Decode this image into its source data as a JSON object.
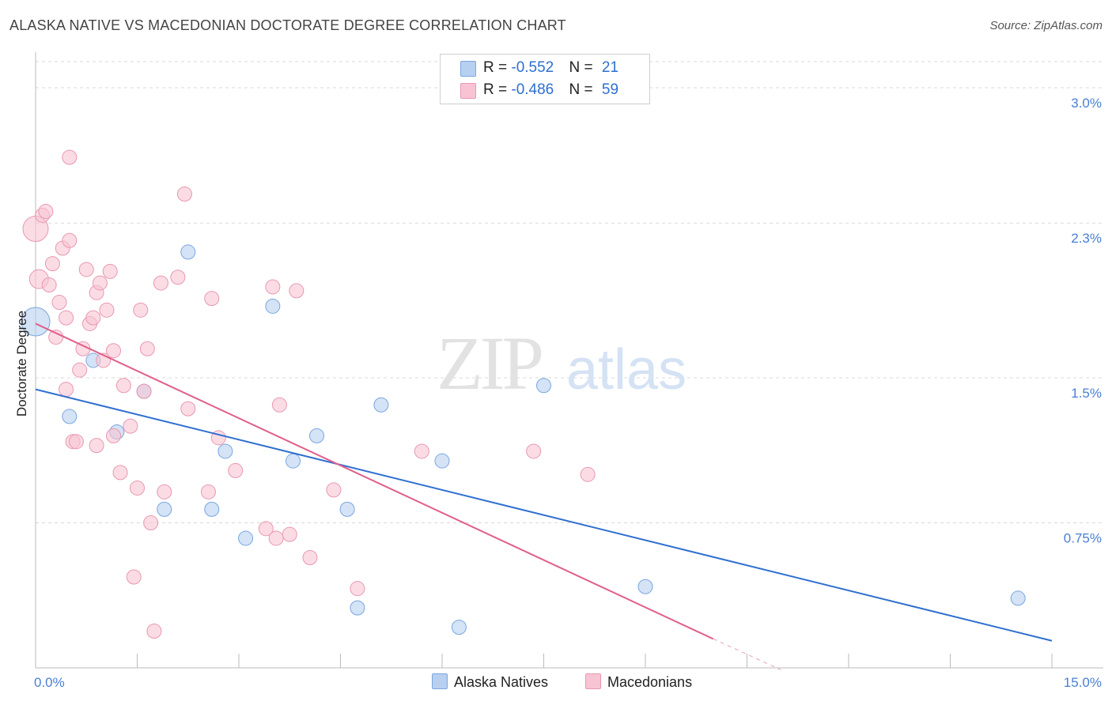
{
  "title": "ALASKA NATIVE VS MACEDONIAN DOCTORATE DEGREE CORRELATION CHART",
  "source": "Source: ZipAtlas.com",
  "watermark": {
    "zip": "ZIP",
    "atlas": "atlas"
  },
  "legend": {
    "series1": {
      "r_label": "R = ",
      "r_value": "-0.552",
      "n_label": "N = ",
      "n_value": "21"
    },
    "series2": {
      "r_label": "R = ",
      "r_value": "-0.486",
      "n_label": "N = ",
      "n_value": "59"
    }
  },
  "bottom_legend": {
    "series1": "Alaska Natives",
    "series2": "Macedonians"
  },
  "colors": {
    "blue_fill": "#b8d0f0",
    "blue_stroke": "#7aa6e0",
    "blue_line": "#2f6fd0",
    "pink_fill": "#f8c4d4",
    "pink_stroke": "#e898b0",
    "pink_line": "#e0608a",
    "grid": "#d8d8d8",
    "tick_text": "#4a7fd4"
  },
  "chart_data": {
    "type": "scatter",
    "title": "ALASKA NATIVE VS MACEDONIAN DOCTORATE DEGREE CORRELATION CHART",
    "xlabel": "",
    "ylabel": "Doctorate Degree",
    "xlim": [
      0,
      15
    ],
    "ylim": [
      0,
      3.2
    ],
    "x_tick_labels": [
      {
        "v": 0,
        "label": "0.0%"
      },
      {
        "v": 15,
        "label": "15.0%"
      }
    ],
    "y_tick_labels": [
      {
        "v": 0.75,
        "label": "0.75%"
      },
      {
        "v": 1.5,
        "label": "1.5%"
      },
      {
        "v": 2.3,
        "label": "2.3%"
      },
      {
        "v": 3.0,
        "label": "3.0%"
      }
    ],
    "grid": true,
    "legend_position": "top-center",
    "series": [
      {
        "name": "Alaska Natives",
        "color": "#b8d0f0",
        "points": [
          [
            0.0,
            1.79,
            18
          ],
          [
            0.5,
            1.3,
            9
          ],
          [
            0.85,
            1.59,
            9
          ],
          [
            1.2,
            1.22,
            9
          ],
          [
            1.6,
            1.43,
            9
          ],
          [
            1.9,
            0.82,
            9
          ],
          [
            2.25,
            2.15,
            9
          ],
          [
            2.6,
            0.82,
            9
          ],
          [
            2.8,
            1.12,
            9
          ],
          [
            3.1,
            0.67,
            9
          ],
          [
            3.5,
            1.87,
            9
          ],
          [
            3.8,
            1.07,
            9
          ],
          [
            4.15,
            1.2,
            9
          ],
          [
            4.6,
            0.82,
            9
          ],
          [
            4.75,
            0.31,
            9
          ],
          [
            5.1,
            1.36,
            9
          ],
          [
            6.0,
            1.07,
            9
          ],
          [
            6.25,
            0.21,
            9
          ],
          [
            7.5,
            1.46,
            9
          ],
          [
            9.0,
            0.42,
            9
          ],
          [
            14.5,
            0.36,
            9
          ]
        ],
        "trend": {
          "x": [
            0,
            15
          ],
          "y": [
            1.44,
            0.14
          ]
        }
      },
      {
        "name": "Macedonians",
        "color": "#f8c4d4",
        "points": [
          [
            0.0,
            2.27,
            16
          ],
          [
            0.05,
            2.01,
            12
          ],
          [
            0.1,
            2.34,
            9
          ],
          [
            0.15,
            2.36,
            9
          ],
          [
            0.2,
            1.98,
            9
          ],
          [
            0.25,
            2.09,
            9
          ],
          [
            0.3,
            1.71,
            9
          ],
          [
            0.35,
            1.89,
            9
          ],
          [
            0.4,
            2.17,
            9
          ],
          [
            0.45,
            1.81,
            9
          ],
          [
            0.45,
            1.44,
            9
          ],
          [
            0.5,
            2.21,
            9
          ],
          [
            0.5,
            2.64,
            9
          ],
          [
            0.55,
            1.17,
            9
          ],
          [
            0.6,
            1.17,
            9
          ],
          [
            0.65,
            1.54,
            9
          ],
          [
            0.7,
            1.65,
            9
          ],
          [
            0.75,
            2.06,
            9
          ],
          [
            0.8,
            1.78,
            9
          ],
          [
            0.85,
            1.81,
            9
          ],
          [
            0.9,
            1.15,
            9
          ],
          [
            0.9,
            1.94,
            9
          ],
          [
            0.95,
            1.99,
            9
          ],
          [
            1.0,
            1.59,
            9
          ],
          [
            1.05,
            1.85,
            9
          ],
          [
            1.1,
            2.05,
            9
          ],
          [
            1.15,
            1.64,
            9
          ],
          [
            1.15,
            1.2,
            9
          ],
          [
            1.25,
            1.01,
            9
          ],
          [
            1.3,
            1.46,
            9
          ],
          [
            1.4,
            1.25,
            9
          ],
          [
            1.45,
            0.47,
            9
          ],
          [
            1.5,
            0.93,
            9
          ],
          [
            1.55,
            1.85,
            9
          ],
          [
            1.6,
            1.43,
            9
          ],
          [
            1.65,
            1.65,
            9
          ],
          [
            1.7,
            0.75,
            9
          ],
          [
            1.75,
            0.19,
            9
          ],
          [
            1.85,
            1.99,
            9
          ],
          [
            1.9,
            0.91,
            9
          ],
          [
            2.1,
            2.02,
            9
          ],
          [
            2.2,
            2.45,
            9
          ],
          [
            2.25,
            1.34,
            9
          ],
          [
            2.55,
            0.91,
            9
          ],
          [
            2.6,
            1.91,
            9
          ],
          [
            2.7,
            1.19,
            9
          ],
          [
            2.95,
            1.02,
            9
          ],
          [
            3.4,
            0.72,
            9
          ],
          [
            3.5,
            1.97,
            9
          ],
          [
            3.55,
            0.67,
            9
          ],
          [
            3.6,
            1.36,
            9
          ],
          [
            3.75,
            0.69,
            9
          ],
          [
            3.85,
            1.95,
            9
          ],
          [
            4.05,
            0.57,
            9
          ],
          [
            4.4,
            0.92,
            9
          ],
          [
            4.75,
            0.41,
            9
          ],
          [
            5.7,
            1.12,
            9
          ],
          [
            7.35,
            1.12,
            9
          ],
          [
            8.15,
            1.0,
            9
          ]
        ],
        "trend": {
          "x": [
            0,
            10
          ],
          "y": [
            1.78,
            0.15
          ]
        },
        "trend_dashed": {
          "x": [
            10,
            11
          ],
          "y": [
            0.15,
            -0.01
          ]
        }
      }
    ]
  }
}
